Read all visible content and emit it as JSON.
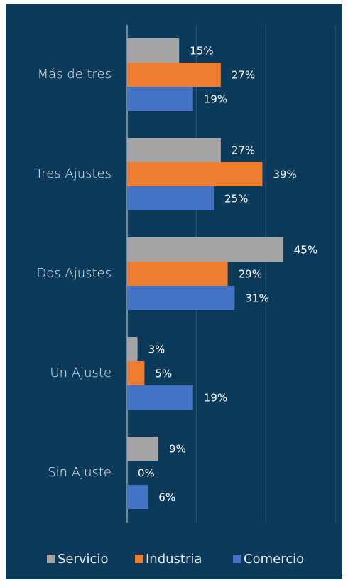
{
  "chart_data": {
    "type": "bar",
    "orientation": "horizontal",
    "categories": [
      "Más de tres",
      "Tres Ajustes",
      "Dos Ajustes",
      "Un Ajuste",
      "Sin Ajuste"
    ],
    "series": [
      {
        "name": "Servicio",
        "color": "#a5a5a5",
        "values": [
          15,
          27,
          45,
          3,
          9
        ],
        "value_labels": [
          "15%",
          "27%",
          "45%",
          "3%",
          "9%"
        ]
      },
      {
        "name": "Industria",
        "color": "#ed7d31",
        "values": [
          27,
          39,
          29,
          5,
          0
        ],
        "value_labels": [
          "27%",
          "39%",
          "29%",
          "5%",
          "0%"
        ]
      },
      {
        "name": "Comercio",
        "color": "#4472c4",
        "values": [
          19,
          25,
          31,
          19,
          6
        ],
        "value_labels": [
          "19%",
          "25%",
          "31%",
          "19%",
          "6%"
        ]
      }
    ],
    "xlim": [
      0,
      60
    ],
    "xticks": [
      0,
      20,
      40,
      60
    ],
    "grid": true,
    "legend": "bottom"
  }
}
